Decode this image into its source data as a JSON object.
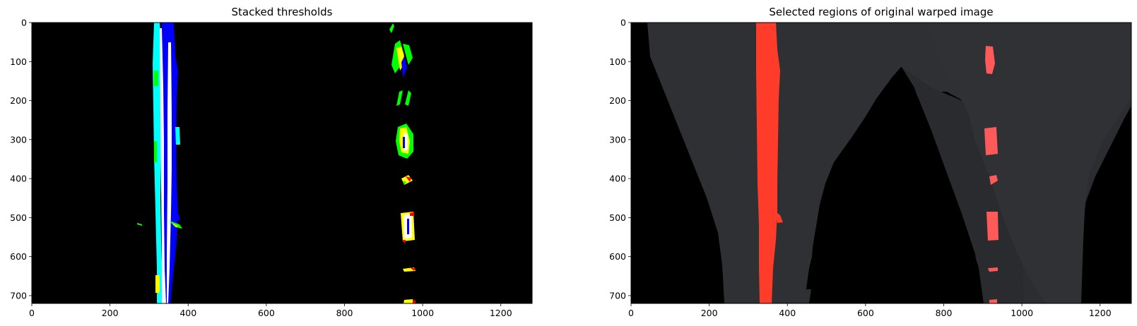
{
  "panels": [
    {
      "id": "left",
      "title": "Stacked thresholds",
      "xticks": [
        "0",
        "200",
        "400",
        "600",
        "800",
        "1000",
        "1200"
      ],
      "yticks": [
        "0",
        "100",
        "200",
        "300",
        "400",
        "500",
        "600",
        "700"
      ],
      "background": "#000000"
    },
    {
      "id": "right",
      "title": "Selected regions of original warped image",
      "xticks": [
        "0",
        "200",
        "400",
        "600",
        "800",
        "1000",
        "1200"
      ],
      "yticks": [
        "0",
        "100",
        "200",
        "300",
        "400",
        "500",
        "600",
        "700"
      ],
      "background": "#000000"
    }
  ],
  "image_extent": {
    "width": 1280,
    "height": 720
  },
  "colors": {
    "blue": "#0000ff",
    "cyan": "#00ffff",
    "green": "#00ff00",
    "yellow": "#ffff00",
    "red": "#ff0000",
    "white": "#ffffff",
    "road_gray": "#2f3033",
    "lane_red": "#ff3b2a",
    "lane_pink": "#ff5a5a"
  }
}
